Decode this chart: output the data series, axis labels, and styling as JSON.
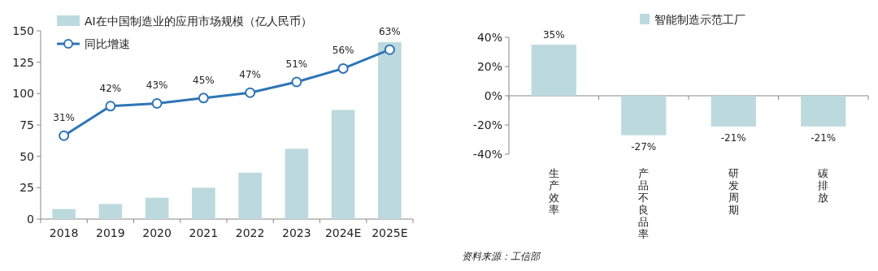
{
  "chart_data": [
    {
      "type": "bar",
      "categories": [
        "2018",
        "2019",
        "2020",
        "2021",
        "2022",
        "2023",
        "2024E",
        "2025E"
      ],
      "series": [
        {
          "name": "AI在中国制造业的应用市场规模（亿人民币）",
          "color": "#bcdadd",
          "values": [
            8,
            12,
            17,
            25,
            37,
            56,
            87,
            141
          ]
        },
        {
          "name": "同比增速",
          "type": "line",
          "axis": "y2",
          "color": "#2e75b6",
          "marker": "circle",
          "values": [
            31,
            42,
            43,
            45,
            47,
            51,
            56,
            63
          ],
          "value_labels": [
            "31%",
            "42%",
            "43%",
            "45%",
            "47%",
            "51%",
            "56%",
            "63%"
          ]
        }
      ],
      "ylim": [
        0,
        150
      ],
      "yticks": [
        0,
        25,
        50,
        75,
        100,
        125,
        150
      ],
      "y2lim": [
        0,
        70
      ],
      "legend": "top left"
    },
    {
      "type": "bar",
      "categories": [
        "生产效率",
        "产品不良品率",
        "研发周期",
        "碳排放"
      ],
      "series": [
        {
          "name": "智能制造示范工厂",
          "color": "#bcdadd",
          "values": [
            35,
            -27,
            -21,
            -21
          ],
          "value_labels": [
            "35%",
            "-27%",
            "-21%",
            "-21%"
          ]
        }
      ],
      "ylim": [
        -40,
        40
      ],
      "yticks": [
        {
          "value": -40,
          "label": "-40%"
        },
        {
          "value": -20,
          "label": "-20%"
        },
        {
          "value": 0,
          "label": "0%"
        },
        {
          "value": 20,
          "label": "20%"
        },
        {
          "value": 40,
          "label": "40%"
        }
      ],
      "legend": "top",
      "annotations": [
        "资料来源：工信部"
      ]
    }
  ]
}
